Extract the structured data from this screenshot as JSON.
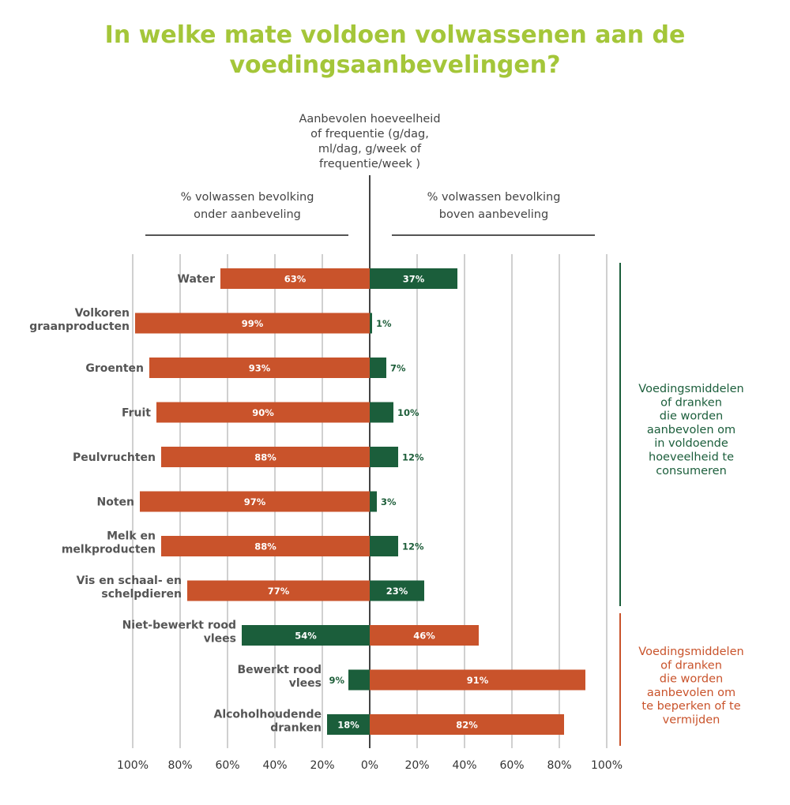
{
  "colors": {
    "orange": "#c9532b",
    "green": "#1b5e3b",
    "title": "#a4c639",
    "grid": "#d0d0d0",
    "axis": "#444444"
  },
  "title_lines": [
    "In welke mate voldoen volwassenen aan de",
    "voedingsaanbevelingen?"
  ],
  "center_label_lines": [
    "Aanbevolen hoeveelheid",
    "of frequentie (g/dag,",
    "ml/dag, g/week of",
    "frequentie/week )"
  ],
  "left_header_lines": [
    "% volwassen bevolking",
    "onder aanbeveling"
  ],
  "right_header_lines": [
    "% volwassen bevolking",
    "boven aanbeveling"
  ],
  "side_groups": [
    {
      "lines": [
        "Voedingsmiddelen",
        "of dranken",
        "die worden",
        "aanbevolen om",
        "in voldoende",
        "hoeveelheid te",
        "consumeren"
      ],
      "color": "#1b5e3b"
    },
    {
      "lines": [
        "Voedingsmiddelen",
        "of dranken",
        "die worden",
        "aanbevolen om",
        "te beperken of te",
        "vermijden"
      ],
      "color": "#c9532b"
    }
  ],
  "chart_data": {
    "type": "bar",
    "orientation": "horizontal-diverging",
    "xlim": [
      -100,
      100
    ],
    "tick_labels": [
      "100%",
      "80%",
      "60%",
      "40%",
      "20%",
      "0%",
      "20%",
      "40%",
      "60%",
      "80%",
      "100%"
    ],
    "categories": [
      {
        "label_lines": [
          "Water"
        ],
        "under": 63,
        "above": 37,
        "under_label": "63%",
        "above_label": "37%",
        "under_color": "#c9532b",
        "above_color": "#1b5e3b"
      },
      {
        "label_lines": [
          "Volkoren",
          "graanproducten"
        ],
        "under": 99,
        "above": 1,
        "under_label": "99%",
        "above_label": "1%",
        "under_color": "#c9532b",
        "above_color": "#1b5e3b"
      },
      {
        "label_lines": [
          "Groenten"
        ],
        "under": 93,
        "above": 7,
        "under_label": "93%",
        "above_label": "7%",
        "under_color": "#c9532b",
        "above_color": "#1b5e3b"
      },
      {
        "label_lines": [
          "Fruit"
        ],
        "under": 90,
        "above": 10,
        "under_label": "90%",
        "above_label": "10%",
        "under_color": "#c9532b",
        "above_color": "#1b5e3b"
      },
      {
        "label_lines": [
          "Peulvruchten"
        ],
        "under": 88,
        "above": 12,
        "under_label": "88%",
        "above_label": "12%",
        "under_color": "#c9532b",
        "above_color": "#1b5e3b"
      },
      {
        "label_lines": [
          "Noten"
        ],
        "under": 97,
        "above": 3,
        "under_label": "97%",
        "above_label": "3%",
        "under_color": "#c9532b",
        "above_color": "#1b5e3b"
      },
      {
        "label_lines": [
          "Melk en",
          "melkproducten"
        ],
        "under": 88,
        "above": 12,
        "under_label": "88%",
        "above_label": "12%",
        "under_color": "#c9532b",
        "above_color": "#1b5e3b"
      },
      {
        "label_lines": [
          "Vis en schaal- en",
          "schelpdieren"
        ],
        "under": 77,
        "above": 23,
        "under_label": "77%",
        "above_label": "23%",
        "under_color": "#c9532b",
        "above_color": "#1b5e3b"
      },
      {
        "label_lines": [
          "Niet-bewerkt rood",
          "vlees"
        ],
        "under": 54,
        "above": 46,
        "under_label": "54%",
        "above_label": "46%",
        "under_color": "#1b5e3b",
        "above_color": "#c9532b"
      },
      {
        "label_lines": [
          "Bewerkt rood",
          "vlees"
        ],
        "under": 9,
        "above": 91,
        "under_label": "9%",
        "above_label": "91%",
        "under_color": "#1b5e3b",
        "above_color": "#c9532b"
      },
      {
        "label_lines": [
          "Alcoholhoudende",
          "dranken"
        ],
        "under": 18,
        "above": 82,
        "under_label": "18%",
        "above_label": "82%",
        "under_color": "#1b5e3b",
        "above_color": "#c9532b"
      }
    ]
  }
}
